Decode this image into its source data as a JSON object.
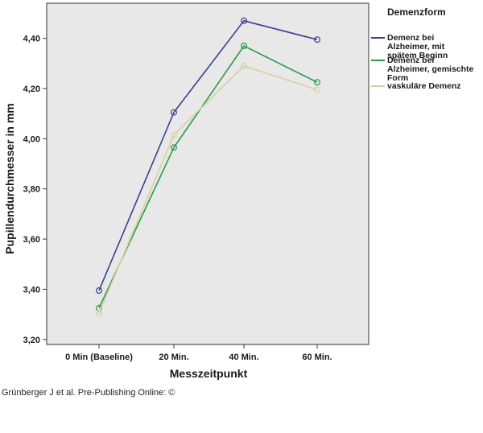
{
  "caption": "Grünberger J et al. Pre-Publishing Online: ©",
  "colors": {
    "plot_background": "#e8e8e8",
    "frame": "#333333"
  },
  "chart_data": {
    "type": "line",
    "xlabel": "Messzeitpunkt",
    "ylabel": "Pupillendurchmesser in mm",
    "categories": [
      "0 Min (Baseline)",
      "20 Min.",
      "40 Min.",
      "60 Min."
    ],
    "ylim": [
      3.18,
      4.54
    ],
    "yticks": [
      3.2,
      3.4,
      3.6,
      3.8,
      4.0,
      4.2,
      4.4
    ],
    "ytick_labels": [
      "3,20",
      "3,40",
      "3,60",
      "3,80",
      "4,00",
      "4,20",
      "4,40"
    ],
    "grid": false,
    "marker": "circle",
    "legend": {
      "title": "Demenzform",
      "placement": "right"
    },
    "series": [
      {
        "name": "Demenz bei Alzheimer, mit spätem Beginn",
        "name_lines": [
          "Demenz bei",
          "Alzheimer, mit",
          "spätem Beginn"
        ],
        "color": "#3b3f8f",
        "values": [
          3.395,
          4.105,
          4.47,
          4.395
        ]
      },
      {
        "name": "Demenz bei Alzheimer, gemischte Form",
        "name_lines": [
          "Demenz bei",
          "Alzheimer, gemischte",
          "Form"
        ],
        "color": "#2a9a4a",
        "values": [
          3.325,
          3.965,
          4.37,
          4.225
        ]
      },
      {
        "name": "vaskuläre Demenz",
        "name_lines": [
          "vaskuläre Demenz"
        ],
        "color": "#d9cfa0",
        "values": [
          3.305,
          4.015,
          4.29,
          4.195
        ]
      }
    ]
  }
}
